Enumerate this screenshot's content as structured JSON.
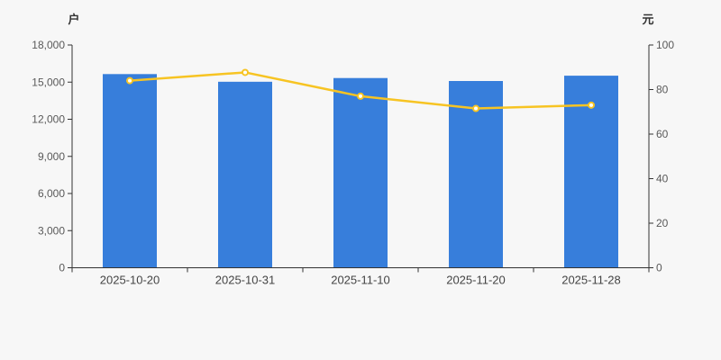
{
  "page": {
    "background": "#f7f7f7"
  },
  "chart_data": {
    "type": "bar",
    "subtype": "bar-with-line-dual-axis",
    "title": "",
    "legend": false,
    "grid": false,
    "categories": [
      "2025-10-20",
      "2025-10-31",
      "2025-11-10",
      "2025-11-20",
      "2025-11-28"
    ],
    "series": [
      {
        "id": "bar-series",
        "type": "bar",
        "axis": "left",
        "values": [
          15650,
          15030,
          15330,
          15090,
          15520
        ],
        "color": "#377edb"
      },
      {
        "id": "line-series",
        "type": "line",
        "axis": "right",
        "values": [
          84,
          87.7,
          77,
          71.5,
          73
        ],
        "color": "#f7c423",
        "marker_fill": "#ffffff"
      }
    ],
    "left_axis": {
      "name": "户",
      "min": 0,
      "max": 18000,
      "step": 3000,
      "tick_labels": [
        "0",
        "3,000",
        "6,000",
        "9,000",
        "12,000",
        "15,000",
        "18,000"
      ]
    },
    "right_axis": {
      "name": "元",
      "min": 0,
      "max": 100,
      "step": 20,
      "tick_labels": [
        "0",
        "20",
        "40",
        "60",
        "80",
        "100"
      ]
    },
    "colors": {
      "axis_line": "#333333",
      "tick_label": "#595959",
      "x_tick_label": "#444444",
      "axis_name": "#333333"
    }
  }
}
